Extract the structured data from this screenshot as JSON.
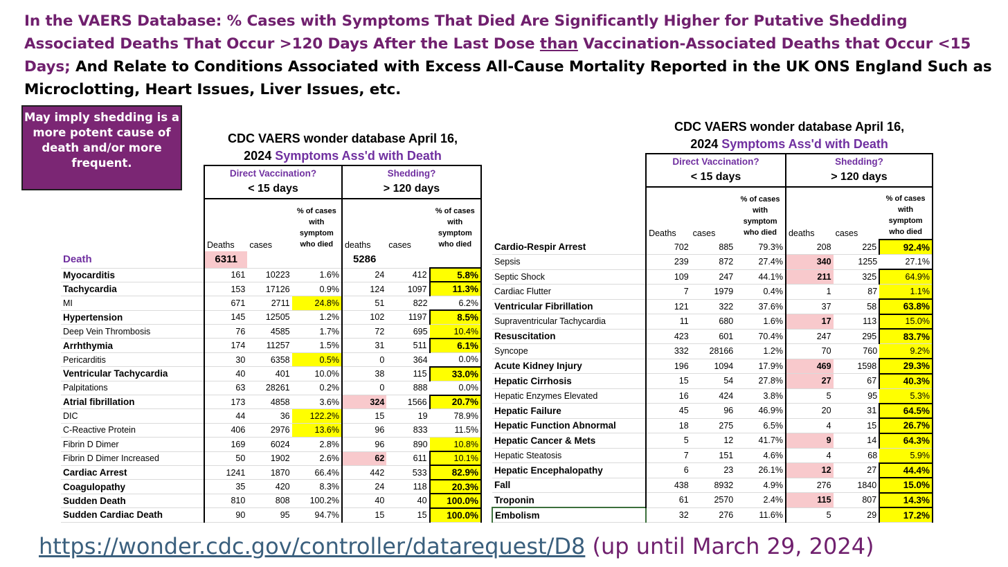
{
  "headline": {
    "part1": "In the VAERS Database: % Cases with Symptoms That Died Are Significantly Higher for Putative Shedding Associated Deaths That Occur  >120 Days After the Last Dose ",
    "part2": "than",
    "part3": " Vaccination-Associated Deaths that Occur <15 Days;",
    "part4": " And Relate to Conditions Associated with Excess All-Cause Mortality Reported in the UK ONS England Such as Microclotting, Heart Issues, Liver Issues, etc."
  },
  "callout": "May imply shedding is a more potent cause of death and/or more frequent.",
  "tables": {
    "title_line1": "CDC VAERS wonder database April 16,",
    "title_line2a": "2024 ",
    "title_line2b": "Symptoms Ass'd with Death",
    "group_direct": "Direct Vaccination?",
    "group_shedding": "Shedding?",
    "period_15": "< 15 days",
    "period_120": "> 120 days",
    "col_deaths": "Deaths",
    "col_cases": "cases",
    "col_pct": "% of cases with symptom who died",
    "col_deaths2": "deaths",
    "col_cases2": "cases"
  },
  "left_table": {
    "death_label": "Death",
    "death_15": "6311",
    "death_120": "5286",
    "rows": [
      {
        "name": "Myocarditis",
        "bold": true,
        "d1": "161",
        "c1": "10223",
        "p1": "1.6%",
        "d2": "24",
        "c2": "412",
        "p2": "5.8%",
        "hp1": false,
        "hd2": false,
        "hp2": true
      },
      {
        "name": "Tachycardia",
        "bold": true,
        "d1": "153",
        "c1": "17126",
        "p1": "0.9%",
        "d2": "124",
        "c2": "1097",
        "p2": "11.3%",
        "hp1": false,
        "hd2": false,
        "hp2": true
      },
      {
        "name": "MI",
        "bold": false,
        "d1": "671",
        "c1": "2711",
        "p1": "24.8%",
        "d2": "51",
        "c2": "822",
        "p2": "6.2%",
        "hp1": true,
        "hd2": false,
        "hp2": false
      },
      {
        "name": "Hypertension",
        "bold": true,
        "d1": "145",
        "c1": "12505",
        "p1": "1.2%",
        "d2": "102",
        "c2": "1197",
        "p2": "8.5%",
        "hp1": false,
        "hd2": false,
        "hp2": true
      },
      {
        "name": "Deep Vein Thrombosis",
        "bold": false,
        "d1": "76",
        "c1": "4585",
        "p1": "1.7%",
        "d2": "72",
        "c2": "695",
        "p2": "10.4%",
        "hp1": false,
        "hd2": false,
        "hp2": true
      },
      {
        "name": "Arrhthymia",
        "bold": true,
        "d1": "174",
        "c1": "11257",
        "p1": "1.5%",
        "d2": "31",
        "c2": "511",
        "p2": "6.1%",
        "hp1": false,
        "hd2": false,
        "hp2": true
      },
      {
        "name": "Pericarditis",
        "bold": false,
        "d1": "30",
        "c1": "6358",
        "p1": "0.5%",
        "d2": "0",
        "c2": "364",
        "p2": "0.0%",
        "hp1": true,
        "hd2": false,
        "hp2": false
      },
      {
        "name": "Ventricular Tachycardia",
        "bold": true,
        "d1": "40",
        "c1": "401",
        "p1": "10.0%",
        "d2": "38",
        "c2": "115",
        "p2": "33.0%",
        "hp1": false,
        "hd2": false,
        "hp2": true
      },
      {
        "name": "Palpitations",
        "bold": false,
        "d1": "63",
        "c1": "28261",
        "p1": "0.2%",
        "d2": "0",
        "c2": "888",
        "p2": "0.0%",
        "hp1": false,
        "hd2": false,
        "hp2": false
      },
      {
        "name": "Atrial fibrillation",
        "bold": true,
        "d1": "173",
        "c1": "4858",
        "p1": "3.6%",
        "d2": "324",
        "c2": "1566",
        "p2": "20.7%",
        "hp1": false,
        "hd2": true,
        "hp2": true
      },
      {
        "name": "DIC",
        "bold": false,
        "d1": "44",
        "c1": "36",
        "p1": "122.2%",
        "d2": "15",
        "c2": "19",
        "p2": "78.9%",
        "hp1": true,
        "hd2": false,
        "hp2": false
      },
      {
        "name": "C-Reactive Protein",
        "bold": false,
        "d1": "406",
        "c1": "2976",
        "p1": "13.6%",
        "d2": "96",
        "c2": "833",
        "p2": "11.5%",
        "hp1": true,
        "hd2": false,
        "hp2": false
      },
      {
        "name": "Fibrin D Dimer",
        "bold": false,
        "d1": "169",
        "c1": "6024",
        "p1": "2.8%",
        "d2": "96",
        "c2": "890",
        "p2": "10.8%",
        "hp1": false,
        "hd2": false,
        "hp2": true
      },
      {
        "name": "Fibrin D Dimer Increased",
        "bold": false,
        "d1": "50",
        "c1": "1902",
        "p1": "2.6%",
        "d2": "62",
        "c2": "611",
        "p2": "10.1%",
        "hp1": false,
        "hd2": true,
        "hp2": true
      },
      {
        "name": "Cardiac Arrest",
        "bold": true,
        "d1": "1241",
        "c1": "1870",
        "p1": "66.4%",
        "d2": "442",
        "c2": "533",
        "p2": "82.9%",
        "hp1": false,
        "hd2": false,
        "hp2": true
      },
      {
        "name": "Coagulopathy",
        "bold": true,
        "d1": "35",
        "c1": "420",
        "p1": "8.3%",
        "d2": "24",
        "c2": "118",
        "p2": "20.3%",
        "hp1": false,
        "hd2": false,
        "hp2": true
      },
      {
        "name": "Sudden Death",
        "bold": true,
        "d1": "810",
        "c1": "808",
        "p1": "100.2%",
        "d2": "40",
        "c2": "40",
        "p2": "100.0%",
        "hp1": false,
        "hd2": false,
        "hp2": true
      },
      {
        "name": "Sudden Cardiac Death",
        "bold": true,
        "d1": "90",
        "c1": "95",
        "p1": "94.7%",
        "d2": "15",
        "c2": "15",
        "p2": "100.0%",
        "hp1": false,
        "hd2": false,
        "hp2": true
      }
    ]
  },
  "right_table": {
    "rows": [
      {
        "name": "Cardio-Respir Arrest",
        "bold": true,
        "d1": "702",
        "c1": "885",
        "p1": "79.3%",
        "d2": "208",
        "c2": "225",
        "p2": "92.4%",
        "hd2": false,
        "hp2": true
      },
      {
        "name": "Sepsis",
        "bold": false,
        "d1": "239",
        "c1": "872",
        "p1": "27.4%",
        "d2": "340",
        "c2": "1255",
        "p2": "27.1%",
        "hd2": true,
        "hp2": false
      },
      {
        "name": "Septic Shock",
        "bold": false,
        "d1": "109",
        "c1": "247",
        "p1": "44.1%",
        "d2": "211",
        "c2": "325",
        "p2": "64.9%",
        "hd2": true,
        "hp2": true
      },
      {
        "name": "Cardiac Flutter",
        "bold": false,
        "d1": "7",
        "c1": "1979",
        "p1": "0.4%",
        "d2": "1",
        "c2": "87",
        "p2": "1.1%",
        "hd2": false,
        "hp2": true
      },
      {
        "name": "Ventricular Fibrillation",
        "bold": true,
        "d1": "121",
        "c1": "322",
        "p1": "37.6%",
        "d2": "37",
        "c2": "58",
        "p2": "63.8%",
        "hd2": false,
        "hp2": true
      },
      {
        "name": "Supraventricular Tachycardia",
        "bold": false,
        "d1": "11",
        "c1": "680",
        "p1": "1.6%",
        "d2": "17",
        "c2": "113",
        "p2": "15.0%",
        "hd2": true,
        "hp2": true
      },
      {
        "name": "Resuscitation",
        "bold": true,
        "d1": "423",
        "c1": "601",
        "p1": "70.4%",
        "d2": "247",
        "c2": "295",
        "p2": "83.7%",
        "hd2": false,
        "hp2": true
      },
      {
        "name": "Syncope",
        "bold": false,
        "d1": "332",
        "c1": "28166",
        "p1": "1.2%",
        "d2": "70",
        "c2": "760",
        "p2": "9.2%",
        "hd2": false,
        "hp2": true
      },
      {
        "name": "Acute Kidney Injury",
        "bold": true,
        "d1": "196",
        "c1": "1094",
        "p1": "17.9%",
        "d2": "469",
        "c2": "1598",
        "p2": "29.3%",
        "hd2": true,
        "hp2": true
      },
      {
        "name": "Hepatic Cirrhosis",
        "bold": true,
        "d1": "15",
        "c1": "54",
        "p1": "27.8%",
        "d2": "27",
        "c2": "67",
        "p2": "40.3%",
        "hd2": true,
        "hp2": true
      },
      {
        "name": "Hepatic Enzymes Elevated",
        "bold": false,
        "d1": "16",
        "c1": "424",
        "p1": "3.8%",
        "d2": "5",
        "c2": "95",
        "p2": "5.3%",
        "hd2": false,
        "hp2": true
      },
      {
        "name": "Hepatic Failure",
        "bold": true,
        "d1": "45",
        "c1": "96",
        "p1": "46.9%",
        "d2": "20",
        "c2": "31",
        "p2": "64.5%",
        "hd2": false,
        "hp2": true
      },
      {
        "name": "Hepatic Function Abnormal",
        "bold": true,
        "d1": "18",
        "c1": "275",
        "p1": "6.5%",
        "d2": "4",
        "c2": "15",
        "p2": "26.7%",
        "hd2": false,
        "hp2": true
      },
      {
        "name": "Hepatic Cancer & Mets",
        "bold": true,
        "d1": "5",
        "c1": "12",
        "p1": "41.7%",
        "d2": "9",
        "c2": "14",
        "p2": "64.3%",
        "hd2": true,
        "hp2": true
      },
      {
        "name": "Hepatic Steatosis",
        "bold": false,
        "d1": "7",
        "c1": "151",
        "p1": "4.6%",
        "d2": "4",
        "c2": "68",
        "p2": "5.9%",
        "hd2": false,
        "hp2": true
      },
      {
        "name": "Hepatic Encephalopathy",
        "bold": true,
        "d1": "6",
        "c1": "23",
        "p1": "26.1%",
        "d2": "12",
        "c2": "27",
        "p2": "44.4%",
        "hd2": true,
        "hp2": true
      },
      {
        "name": "Fall",
        "bold": true,
        "d1": "438",
        "c1": "8932",
        "p1": "4.9%",
        "d2": "276",
        "c2": "1840",
        "p2": "15.0%",
        "hd2": false,
        "hp2": true
      },
      {
        "name": "Troponin",
        "bold": true,
        "d1": "61",
        "c1": "2570",
        "p1": "2.4%",
        "d2": "115",
        "c2": "807",
        "p2": "14.3%",
        "hd2": true,
        "hp2": true
      },
      {
        "name": "Embolism",
        "bold": true,
        "d1": "32",
        "c1": "276",
        "p1": "11.6%",
        "d2": "5",
        "c2": "29",
        "p2": "17.2%",
        "hd2": false,
        "hp2": true
      }
    ]
  },
  "footer": {
    "link": "https://wonder.cdc.gov/controller/datarequest/D8",
    "note": " (up until March 29, 2024)"
  }
}
